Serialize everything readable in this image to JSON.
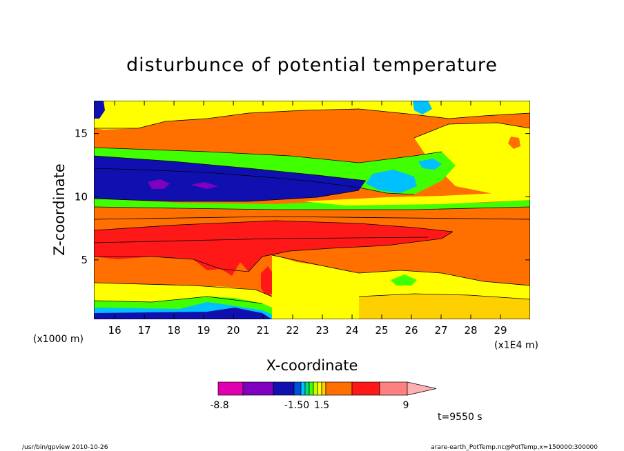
{
  "chart_data": {
    "type": "heatmap",
    "title": "disturbunce of potential temperature",
    "xlabel": "X-coordinate",
    "ylabel": "Z-coordinate",
    "x_units_left": "(x1000 m)",
    "x_units_right": "(x1E4 m)",
    "xlim": [
      15.3,
      30.0
    ],
    "ylim": [
      0.3,
      17.6
    ],
    "x_ticks": [
      "16",
      "17",
      "18",
      "19",
      "20",
      "21",
      "22",
      "23",
      "24",
      "25",
      "26",
      "27",
      "28",
      "29"
    ],
    "y_ticks": [
      "5",
      "10",
      "15"
    ],
    "time_label": "t=9550 s",
    "colorbar": {
      "colors": [
        "#e000b0",
        "#8000c0",
        "#1010b0",
        "#0050e0",
        "#00c0ff",
        "#00e080",
        "#40ff00",
        "#c0ff00",
        "#ffff00",
        "#ffd000",
        "#ff7000",
        "#ff1818",
        "#ff8080",
        "#ffb0b0"
      ],
      "labels": [
        "-8.8",
        "-1.50",
        "1.5",
        "9"
      ]
    },
    "footer_left": "/usr/bin/gpview   2010-10-26",
    "footer_right": "arare-earth_PotTemp.nc@PotTemp,x=150000:300000"
  }
}
